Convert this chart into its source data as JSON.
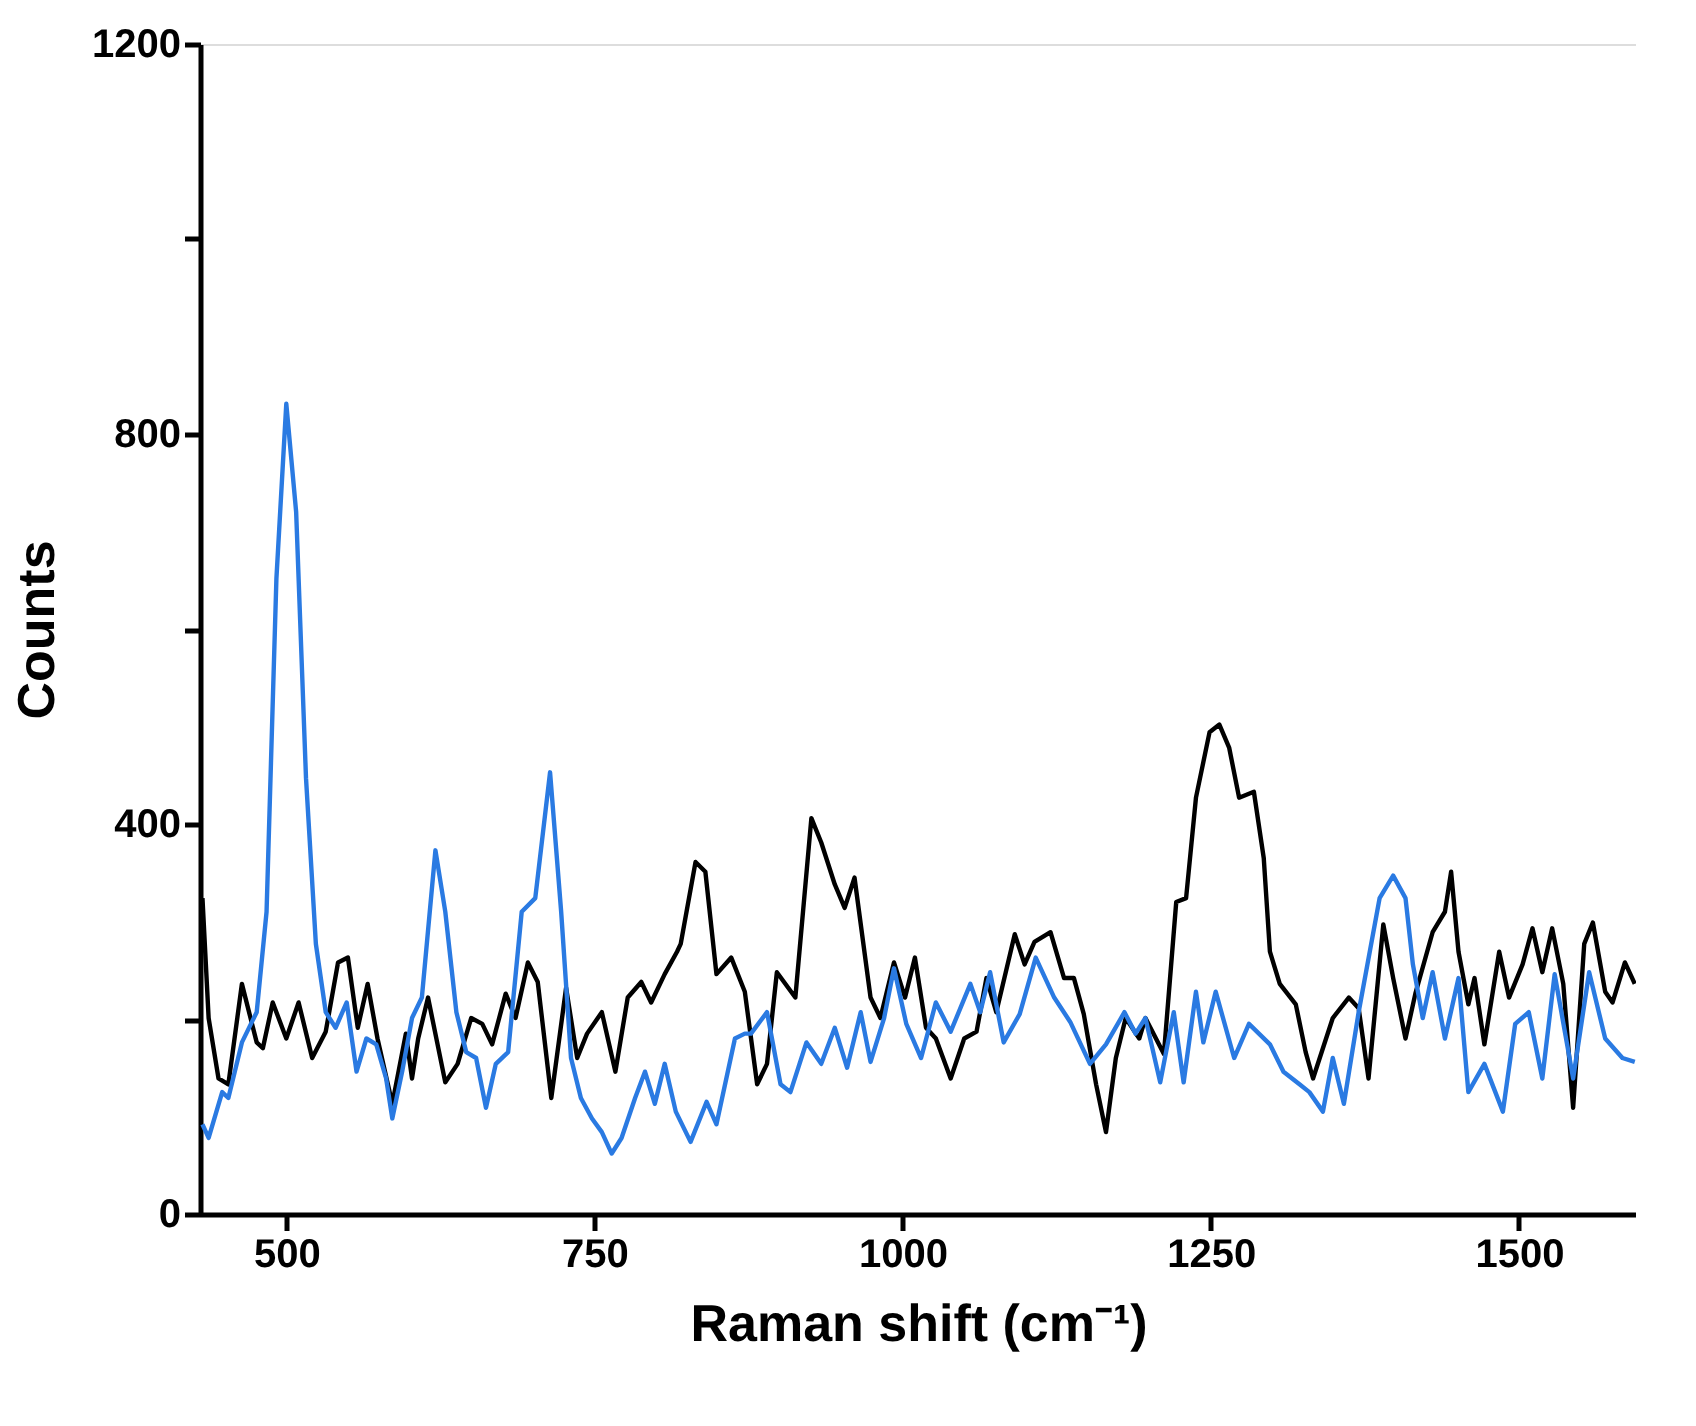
{
  "chart_data": {
    "type": "line",
    "xlabel": "Raman shift (cm⁻¹)",
    "ylabel": "Counts",
    "xlim": [
      430,
      1595
    ],
    "xticks": [
      500,
      750,
      1000,
      1250,
      1500
    ],
    "ylim": [
      0,
      1200
    ],
    "yticks": [
      0,
      {
        "value": 200,
        "label": null
      },
      400,
      {
        "value": 600,
        "label": null
      },
      800,
      {
        "value": 1000,
        "label": null
      },
      1200
    ],
    "grid": false,
    "legend": false,
    "marker": "none",
    "line_style": "solid",
    "series": [
      {
        "color": "#000000",
        "x": [
          432,
          437,
          445,
          453,
          464,
          476,
          481,
          489,
          500,
          510,
          521,
          532,
          542,
          550,
          558,
          566,
          574,
          586,
          597,
          602,
          607,
          615,
          629,
          639,
          650,
          659,
          667,
          678,
          686,
          696,
          704,
          715,
          727,
          736,
          744,
          756,
          767,
          777,
          788,
          796,
          807,
          817,
          820,
          832,
          840,
          849,
          861,
          872,
          882,
          890,
          898,
          913,
          926,
          934,
          945,
          953,
          961,
          974,
          982,
          993,
          1002,
          1010,
          1019,
          1027,
          1039,
          1050,
          1060,
          1068,
          1076,
          1091,
          1099,
          1107,
          1120,
          1131,
          1139,
          1147,
          1157,
          1165,
          1173,
          1181,
          1192,
          1197,
          1212,
          1222,
          1230,
          1238,
          1249,
          1257,
          1265,
          1273,
          1285,
          1293,
          1298,
          1306,
          1319,
          1327,
          1333,
          1349,
          1362,
          1370,
          1378,
          1390,
          1398,
          1408,
          1416,
          1430,
          1440,
          1445,
          1451,
          1459,
          1464,
          1472,
          1484,
          1492,
          1503,
          1511,
          1519,
          1527,
          1536,
          1544,
          1553,
          1560,
          1570,
          1576,
          1586,
          1594
        ],
        "values": [
          324,
          201,
          139,
          133,
          236,
          176,
          170,
          217,
          180,
          217,
          160,
          187,
          258,
          263,
          191,
          236,
          180,
          113,
          185,
          139,
          180,
          222,
          135,
          154,
          201,
          195,
          174,
          226,
          201,
          258,
          238,
          119,
          232,
          160,
          185,
          207,
          146,
          222,
          238,
          217,
          246,
          269,
          277,
          361,
          351,
          246,
          263,
          228,
          133,
          154,
          248,
          222,
          406,
          381,
          338,
          314,
          345,
          222,
          201,
          258,
          222,
          263,
          191,
          180,
          139,
          180,
          187,
          242,
          207,
          287,
          256,
          279,
          289,
          242,
          242,
          205,
          133,
          84,
          160,
          201,
          180,
          201,
          164,
          320,
          324,
          427,
          494,
          502,
          478,
          427,
          433,
          365,
          269,
          236,
          215,
          166,
          139,
          201,
          222,
          211,
          139,
          297,
          242,
          180,
          226,
          289,
          310,
          351,
          269,
          215,
          242,
          174,
          269,
          222,
          256,
          293,
          248,
          293,
          236,
          109,
          277,
          299,
          228,
          217,
          258,
          236
        ]
      },
      {
        "color": "#2a7ae2",
        "x": [
          432,
          437,
          448,
          453,
          464,
          476,
          484,
          492,
          500,
          508,
          516,
          524,
          532,
          540,
          549,
          557,
          565,
          573,
          581,
          586,
          594,
          602,
          610,
          621,
          629,
          638,
          646,
          654,
          662,
          670,
          680,
          691,
          702,
          714,
          723,
          731,
          739,
          748,
          756,
          764,
          772,
          783,
          791,
          799,
          807,
          816,
          828,
          841,
          849,
          864,
          872,
          877,
          890,
          901,
          909,
          922,
          934,
          945,
          955,
          966,
          974,
          985,
          993,
          1003,
          1015,
          1027,
          1039,
          1055,
          1063,
          1071,
          1082,
          1095,
          1108,
          1123,
          1136,
          1152,
          1165,
          1180,
          1189,
          1197,
          1209,
          1220,
          1228,
          1238,
          1244,
          1254,
          1269,
          1281,
          1298,
          1309,
          1322,
          1330,
          1341,
          1349,
          1358,
          1370,
          1387,
          1398,
          1408,
          1414,
          1422,
          1430,
          1440,
          1451,
          1459,
          1472,
          1487,
          1497,
          1508,
          1519,
          1529,
          1544,
          1557,
          1570,
          1584,
          1594
        ],
        "values": [
          92,
          78,
          125,
          119,
          176,
          207,
          310,
          652,
          831,
          720,
          447,
          277,
          207,
          191,
          217,
          146,
          180,
          174,
          139,
          98,
          146,
          201,
          222,
          373,
          310,
          207,
          166,
          160,
          109,
          154,
          166,
          310,
          324,
          453,
          310,
          160,
          119,
          98,
          84,
          62,
          78,
          119,
          146,
          113,
          154,
          105,
          74,
          115,
          92,
          180,
          185,
          185,
          207,
          133,
          125,
          176,
          154,
          191,
          150,
          207,
          156,
          201,
          252,
          195,
          160,
          217,
          187,
          236,
          207,
          248,
          176,
          205,
          263,
          222,
          197,
          154,
          174,
          207,
          185,
          201,
          135,
          207,
          135,
          228,
          176,
          228,
          160,
          195,
          174,
          146,
          133,
          125,
          105,
          160,
          113,
          207,
          324,
          347,
          324,
          256,
          201,
          248,
          180,
          242,
          125,
          154,
          105,
          195,
          207,
          139,
          246,
          139,
          248,
          180,
          160,
          156
        ]
      }
    ]
  }
}
